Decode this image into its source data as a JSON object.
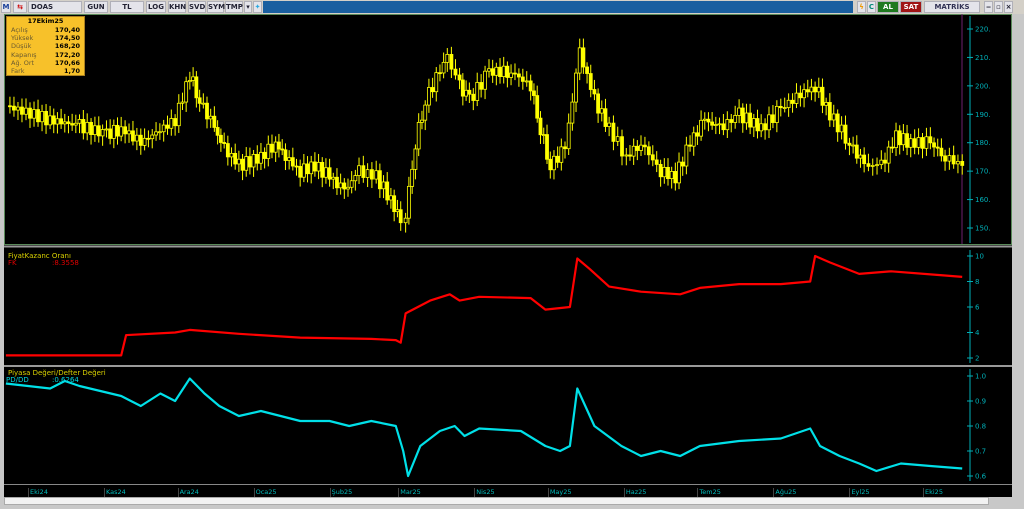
{
  "toolbar": {
    "symbol": "DOAS",
    "buttons": [
      "GUN",
      "TL",
      "LOG",
      "KHN",
      "SVD",
      "SYM",
      "TMP"
    ],
    "al": "AL",
    "sat": "SAT",
    "brand": "MATRİKS"
  },
  "infobox": {
    "date": "17Ekim25",
    "rows": [
      [
        "Açılış",
        "170,40"
      ],
      [
        "Yüksek",
        "174,50"
      ],
      [
        "Düşük",
        "168,20"
      ],
      [
        "Kapanış",
        "172,20"
      ],
      [
        "Ağ. Ort",
        "170,66"
      ],
      [
        "Fark",
        "1,70"
      ]
    ]
  },
  "colors": {
    "price": "#ffff00",
    "fk": "#ff0000",
    "pddd": "#00e0e8",
    "axis": "#00b0b8",
    "info_bg": "#f7c12a"
  },
  "fk_panel": {
    "title": "FiyatKazanc Oranı",
    "label": "FK",
    "value": ":8.3558"
  },
  "pddd_panel": {
    "title": "Piyasa Değeri/Defter Değeri",
    "label": "PD/DD",
    "value": ":0.6264"
  },
  "x_axis": {
    "months": [
      [
        "Eki24",
        "2024-10-01"
      ],
      [
        "Kas24",
        "2024-11-01"
      ],
      [
        "Ara24",
        "2024-12-01"
      ],
      [
        "Oca25",
        "2025-01-01"
      ],
      [
        "Şub25",
        "2025-02-01"
      ],
      [
        "Mar25",
        "2025-03-01"
      ],
      [
        "Nis25",
        "2025-04-01"
      ],
      [
        "May25",
        "2025-05-01"
      ],
      [
        "Haz25",
        "2025-06-01"
      ],
      [
        "Tem25",
        "2025-07-01"
      ],
      [
        "Ağu25",
        "2025-08-01"
      ],
      [
        "Eyl25",
        "2025-09-01"
      ],
      [
        "Eki25",
        "2025-10-01"
      ]
    ]
  },
  "chart_data": [
    {
      "type": "candlestick",
      "series_name": "DOAS",
      "yticks": [
        150,
        160,
        170,
        180,
        190,
        200,
        210,
        220
      ],
      "ylim": [
        145,
        223
      ],
      "close": [
        [
          "2024-09-22",
          193
        ],
        [
          "2024-10-10",
          188
        ],
        [
          "2024-10-22",
          186
        ],
        [
          "2024-11-02",
          183
        ],
        [
          "2024-11-08",
          185
        ],
        [
          "2024-11-16",
          180
        ],
        [
          "2024-11-30",
          188
        ],
        [
          "2024-12-06",
          204
        ],
        [
          "2024-12-10",
          195
        ],
        [
          "2024-12-16",
          185
        ],
        [
          "2024-12-20",
          178
        ],
        [
          "2024-12-26",
          172
        ],
        [
          "2025-01-04",
          175
        ],
        [
          "2025-01-10",
          180
        ],
        [
          "2025-01-14",
          175
        ],
        [
          "2025-01-20",
          170
        ],
        [
          "2025-01-26",
          172
        ],
        [
          "2025-02-01",
          168
        ],
        [
          "2025-02-07",
          163
        ],
        [
          "2025-02-13",
          170
        ],
        [
          "2025-02-20",
          168
        ],
        [
          "2025-02-26",
          160
        ],
        [
          "2025-03-02",
          152
        ],
        [
          "2025-03-04",
          155
        ],
        [
          "2025-03-08",
          180
        ],
        [
          "2025-03-12",
          195
        ],
        [
          "2025-03-18",
          205
        ],
        [
          "2025-03-21",
          210
        ],
        [
          "2025-03-26",
          200
        ],
        [
          "2025-03-30",
          195
        ],
        [
          "2025-04-07",
          205
        ],
        [
          "2025-04-16",
          205
        ],
        [
          "2025-04-24",
          200
        ],
        [
          "2025-04-28",
          185
        ],
        [
          "2025-05-02",
          172
        ],
        [
          "2025-05-08",
          178
        ],
        [
          "2025-05-14",
          212
        ],
        [
          "2025-05-20",
          195
        ],
        [
          "2025-05-26",
          185
        ],
        [
          "2025-06-02",
          175
        ],
        [
          "2025-06-08",
          180
        ],
        [
          "2025-06-16",
          170
        ],
        [
          "2025-06-22",
          168
        ],
        [
          "2025-06-28",
          180
        ],
        [
          "2025-07-04",
          188
        ],
        [
          "2025-07-10",
          185
        ],
        [
          "2025-07-18",
          190
        ],
        [
          "2025-07-27",
          185
        ],
        [
          "2025-08-04",
          192
        ],
        [
          "2025-08-12",
          197
        ],
        [
          "2025-08-18",
          200
        ],
        [
          "2025-08-24",
          190
        ],
        [
          "2025-09-01",
          180
        ],
        [
          "2025-09-07",
          172
        ],
        [
          "2025-09-14",
          172
        ],
        [
          "2025-09-20",
          182
        ],
        [
          "2025-09-26",
          180
        ],
        [
          "2025-10-04",
          180
        ],
        [
          "2025-10-10",
          175
        ],
        [
          "2025-10-17",
          172
        ]
      ]
    },
    {
      "type": "line",
      "series_name": "FK",
      "yticks": [
        2,
        4,
        6,
        8,
        10
      ],
      "ylim": [
        1.5,
        10.3
      ],
      "points": [
        [
          "2024-09-22",
          2.2
        ],
        [
          "2024-11-08",
          2.2
        ],
        [
          "2024-11-10",
          3.8
        ],
        [
          "2024-11-30",
          4.0
        ],
        [
          "2024-12-06",
          4.2
        ],
        [
          "2024-12-26",
          3.9
        ],
        [
          "2025-01-20",
          3.6
        ],
        [
          "2025-02-18",
          3.5
        ],
        [
          "2025-02-28",
          3.4
        ],
        [
          "2025-03-02",
          3.2
        ],
        [
          "2025-03-04",
          5.5
        ],
        [
          "2025-03-14",
          6.5
        ],
        [
          "2025-03-22",
          7.0
        ],
        [
          "2025-03-26",
          6.5
        ],
        [
          "2025-04-03",
          6.8
        ],
        [
          "2025-04-24",
          6.7
        ],
        [
          "2025-04-30",
          5.8
        ],
        [
          "2025-05-10",
          6.0
        ],
        [
          "2025-05-13",
          9.8
        ],
        [
          "2025-05-18",
          9.0
        ],
        [
          "2025-05-26",
          7.6
        ],
        [
          "2025-06-08",
          7.2
        ],
        [
          "2025-06-24",
          7.0
        ],
        [
          "2025-07-02",
          7.5
        ],
        [
          "2025-07-18",
          7.8
        ],
        [
          "2025-08-04",
          7.8
        ],
        [
          "2025-08-16",
          8.0
        ],
        [
          "2025-08-18",
          10.0
        ],
        [
          "2025-08-24",
          9.5
        ],
        [
          "2025-09-05",
          8.6
        ],
        [
          "2025-09-18",
          8.8
        ],
        [
          "2025-10-08",
          8.5
        ],
        [
          "2025-10-17",
          8.36
        ]
      ]
    },
    {
      "type": "line",
      "series_name": "PD/DD",
      "yticks": [
        0.6,
        0.7,
        0.8,
        0.9,
        1.0
      ],
      "ylim": [
        0.58,
        1.02
      ],
      "points": [
        [
          "2024-09-22",
          0.97
        ],
        [
          "2024-10-10",
          0.95
        ],
        [
          "2024-10-16",
          0.98
        ],
        [
          "2024-10-22",
          0.96
        ],
        [
          "2024-11-08",
          0.92
        ],
        [
          "2024-11-16",
          0.88
        ],
        [
          "2024-11-24",
          0.93
        ],
        [
          "2024-11-30",
          0.9
        ],
        [
          "2024-12-06",
          0.99
        ],
        [
          "2024-12-12",
          0.93
        ],
        [
          "2024-12-18",
          0.88
        ],
        [
          "2024-12-26",
          0.84
        ],
        [
          "2025-01-04",
          0.86
        ],
        [
          "2025-01-12",
          0.84
        ],
        [
          "2025-01-20",
          0.82
        ],
        [
          "2025-02-01",
          0.82
        ],
        [
          "2025-02-09",
          0.8
        ],
        [
          "2025-02-18",
          0.82
        ],
        [
          "2025-02-28",
          0.8
        ],
        [
          "2025-03-03",
          0.7
        ],
        [
          "2025-03-05",
          0.6
        ],
        [
          "2025-03-10",
          0.72
        ],
        [
          "2025-03-18",
          0.78
        ],
        [
          "2025-03-24",
          0.8
        ],
        [
          "2025-03-28",
          0.76
        ],
        [
          "2025-04-03",
          0.79
        ],
        [
          "2025-04-20",
          0.78
        ],
        [
          "2025-04-30",
          0.72
        ],
        [
          "2025-05-06",
          0.7
        ],
        [
          "2025-05-10",
          0.72
        ],
        [
          "2025-05-13",
          0.95
        ],
        [
          "2025-05-20",
          0.8
        ],
        [
          "2025-05-31",
          0.72
        ],
        [
          "2025-06-08",
          0.68
        ],
        [
          "2025-06-16",
          0.7
        ],
        [
          "2025-06-24",
          0.68
        ],
        [
          "2025-07-02",
          0.72
        ],
        [
          "2025-07-18",
          0.74
        ],
        [
          "2025-08-04",
          0.75
        ],
        [
          "2025-08-16",
          0.79
        ],
        [
          "2025-08-20",
          0.72
        ],
        [
          "2025-08-28",
          0.68
        ],
        [
          "2025-09-05",
          0.65
        ],
        [
          "2025-09-12",
          0.62
        ],
        [
          "2025-09-22",
          0.65
        ],
        [
          "2025-10-04",
          0.64
        ],
        [
          "2025-10-17",
          0.63
        ]
      ]
    }
  ]
}
